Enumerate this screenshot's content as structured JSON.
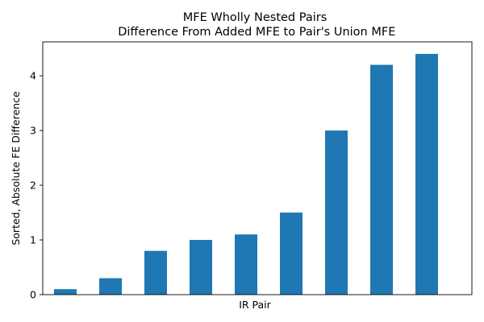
{
  "chart_data": {
    "type": "bar",
    "title_line1": "MFE Wholly Nested Pairs",
    "title_line2": " Difference From Added MFE to Pair's Union MFE",
    "xlabel": "IR Pair",
    "ylabel": "Sorted, Absolute FE Difference",
    "values": [
      0.1,
      0.3,
      0.8,
      1.0,
      1.1,
      1.5,
      3.0,
      4.2,
      4.4
    ],
    "ylim": [
      0,
      4.62
    ],
    "yticks": [
      0,
      1,
      2,
      3,
      4
    ],
    "x_tick_labels_shown": false,
    "grid": false,
    "legend": "none",
    "bar_color": "#1f77b4"
  }
}
